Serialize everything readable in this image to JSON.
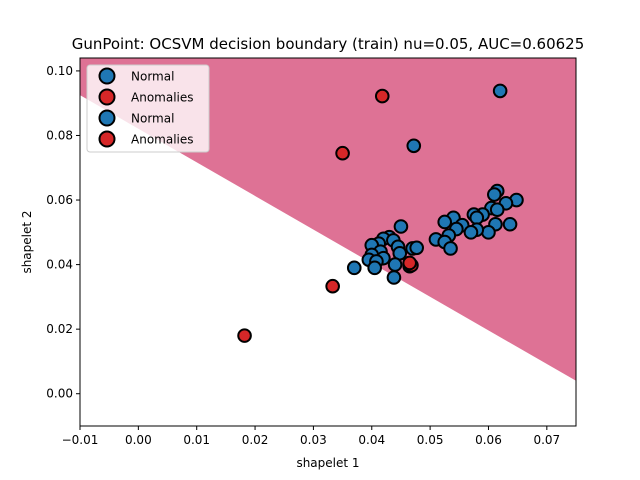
{
  "chart_data": {
    "type": "scatter",
    "title": "GunPoint: OCSVM decision boundary (train) nu=0.05, AUC=0.60625",
    "xlabel": "shapelet 1",
    "ylabel": "shapelet 2",
    "xlim": [
      -0.01,
      0.075
    ],
    "ylim": [
      -0.01,
      0.104
    ],
    "xticks": [
      -0.01,
      0.0,
      0.01,
      0.02,
      0.03,
      0.04,
      0.05,
      0.06,
      0.07
    ],
    "xtick_labels": [
      "−0.01",
      "0.00",
      "0.01",
      "0.02",
      "0.03",
      "0.04",
      "0.05",
      "0.06",
      "0.07"
    ],
    "yticks": [
      0.0,
      0.02,
      0.04,
      0.06,
      0.08,
      0.1
    ],
    "ytick_labels": [
      "0.00",
      "0.02",
      "0.04",
      "0.06",
      "0.08",
      "0.10"
    ],
    "grid": false,
    "legend_position": "top-left",
    "decision_region": {
      "color": "#de7295",
      "boundary_line": [
        [
          -0.01,
          0.0925
        ],
        [
          0.075,
          0.004
        ]
      ]
    },
    "series": [
      {
        "name": "Normal",
        "color": "#1f77b4",
        "points": [
          [
            0.062,
            0.0938
          ],
          [
            0.0472,
            0.0768
          ],
          [
            0.0615,
            0.0628
          ],
          [
            0.061,
            0.0617
          ],
          [
            0.0648,
            0.06
          ],
          [
            0.063,
            0.059
          ],
          [
            0.0605,
            0.0575
          ],
          [
            0.0615,
            0.057
          ],
          [
            0.059,
            0.0555
          ],
          [
            0.0575,
            0.0555
          ],
          [
            0.058,
            0.0545
          ],
          [
            0.054,
            0.0545
          ],
          [
            0.0525,
            0.0532
          ],
          [
            0.0555,
            0.0522
          ],
          [
            0.0612,
            0.0525
          ],
          [
            0.0637,
            0.0525
          ],
          [
            0.0545,
            0.051
          ],
          [
            0.06,
            0.05
          ],
          [
            0.058,
            0.0508
          ],
          [
            0.057,
            0.05
          ],
          [
            0.0532,
            0.049
          ],
          [
            0.051,
            0.0478
          ],
          [
            0.0525,
            0.047
          ],
          [
            0.0535,
            0.045
          ],
          [
            0.045,
            0.0518
          ],
          [
            0.043,
            0.0485
          ],
          [
            0.042,
            0.048
          ],
          [
            0.0437,
            0.0475
          ],
          [
            0.0412,
            0.0465
          ],
          [
            0.04,
            0.046
          ],
          [
            0.0445,
            0.0455
          ],
          [
            0.047,
            0.045
          ],
          [
            0.0477,
            0.0452
          ],
          [
            0.0415,
            0.044
          ],
          [
            0.0448,
            0.0435
          ],
          [
            0.04,
            0.043
          ],
          [
            0.0395,
            0.0415
          ],
          [
            0.042,
            0.042
          ],
          [
            0.044,
            0.04
          ],
          [
            0.0408,
            0.041
          ],
          [
            0.0405,
            0.039
          ],
          [
            0.037,
            0.039
          ],
          [
            0.0465,
            0.0395
          ],
          [
            0.0438,
            0.036
          ]
        ]
      },
      {
        "name": "Anomalies",
        "color": "#d62728",
        "points": [
          [
            0.0418,
            0.0922
          ],
          [
            0.035,
            0.0745
          ],
          [
            0.0333,
            0.0333
          ],
          [
            0.0182,
            0.018
          ],
          [
            0.0468,
            0.0398
          ],
          [
            0.0465,
            0.0405
          ]
        ]
      }
    ],
    "legend_entries": [
      {
        "label": "Normal",
        "color": "#1f77b4"
      },
      {
        "label": "Anomalies",
        "color": "#d62728"
      },
      {
        "label": "Normal",
        "color": "#1f77b4"
      },
      {
        "label": "Anomalies",
        "color": "#d62728"
      }
    ]
  }
}
